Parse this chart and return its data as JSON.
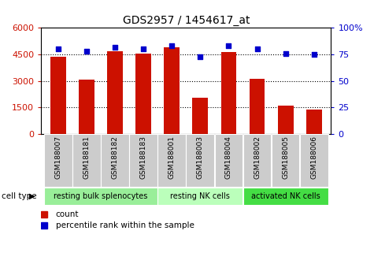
{
  "title": "GDS2957 / 1454617_at",
  "samples": [
    "GSM188007",
    "GSM188181",
    "GSM188182",
    "GSM188183",
    "GSM188001",
    "GSM188003",
    "GSM188004",
    "GSM188002",
    "GSM188005",
    "GSM188006"
  ],
  "counts": [
    4350,
    3080,
    4700,
    4550,
    4900,
    2050,
    4650,
    3100,
    1600,
    1380
  ],
  "percentiles": [
    80,
    78,
    82,
    80,
    83,
    73,
    83,
    80,
    76,
    75
  ],
  "cell_types": [
    {
      "label": "resting bulk splenocytes",
      "start": 0,
      "end": 4,
      "color": "#99ee99"
    },
    {
      "label": "resting NK cells",
      "start": 4,
      "end": 7,
      "color": "#bbffbb"
    },
    {
      "label": "activated NK cells",
      "start": 7,
      "end": 10,
      "color": "#44dd44"
    }
  ],
  "ylim_left": [
    0,
    6000
  ],
  "ylim_right": [
    0,
    100
  ],
  "yticks_left": [
    0,
    1500,
    3000,
    4500,
    6000
  ],
  "yticks_right": [
    0,
    25,
    50,
    75,
    100
  ],
  "bar_color": "#cc1100",
  "scatter_color": "#0000cc",
  "bg_color": "#ffffff",
  "sample_bg_color": "#cccccc",
  "grid_color": "#000000",
  "left_tick_color": "#cc1100",
  "right_tick_color": "#0000cc"
}
